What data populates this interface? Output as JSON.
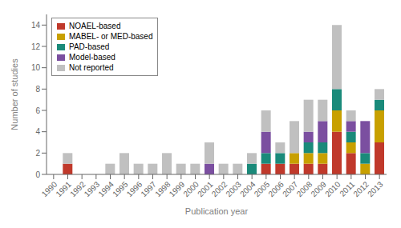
{
  "chart_data": {
    "type": "bar",
    "stacked": true,
    "categories": [
      "1990",
      "1991",
      "1992",
      "1993",
      "1994",
      "1995",
      "1996",
      "1997",
      "1998",
      "1999",
      "2000",
      "2001",
      "2002",
      "2003",
      "2004",
      "2005",
      "2006",
      "2007",
      "2008",
      "2009",
      "2010",
      "2011",
      "2012",
      "2013"
    ],
    "series": [
      {
        "name": "NOAEL-based",
        "color": "#c0392b",
        "values": [
          0,
          1,
          0,
          0,
          0,
          0,
          0,
          0,
          0,
          0,
          0,
          0,
          0,
          0,
          0,
          1,
          1,
          1,
          1,
          1,
          4,
          2,
          0,
          3
        ]
      },
      {
        "name": "MABEL- or MED-based",
        "color": "#c8a000",
        "values": [
          0,
          0,
          0,
          0,
          0,
          0,
          0,
          0,
          0,
          0,
          0,
          0,
          0,
          0,
          0,
          0,
          0,
          1,
          1,
          1,
          2,
          1,
          1,
          3
        ]
      },
      {
        "name": "PAD-based",
        "color": "#1a8a7a",
        "values": [
          0,
          0,
          0,
          0,
          0,
          0,
          0,
          0,
          0,
          0,
          0,
          0,
          0,
          0,
          1,
          1,
          1,
          0,
          1,
          1,
          2,
          1,
          1,
          1
        ]
      },
      {
        "name": "Model-based",
        "color": "#7b4fa0",
        "values": [
          0,
          0,
          0,
          0,
          0,
          0,
          0,
          0,
          0,
          0,
          0,
          1,
          0,
          0,
          0,
          2,
          0,
          0,
          1,
          2,
          0,
          1,
          3,
          0
        ]
      },
      {
        "name": "Not reported",
        "color": "#c0c0c0",
        "values": [
          0,
          1,
          0,
          0,
          1,
          2,
          1,
          1,
          2,
          1,
          1,
          2,
          1,
          1,
          1,
          2,
          1,
          3,
          3,
          2,
          6,
          1,
          0,
          1
        ]
      }
    ],
    "xlabel": "Publication year",
    "ylabel": "Number of studies",
    "ylim": [
      0,
      15
    ],
    "yticks": [
      0,
      2,
      4,
      6,
      8,
      10,
      12,
      14
    ],
    "grid": false,
    "legend": "upper left"
  }
}
